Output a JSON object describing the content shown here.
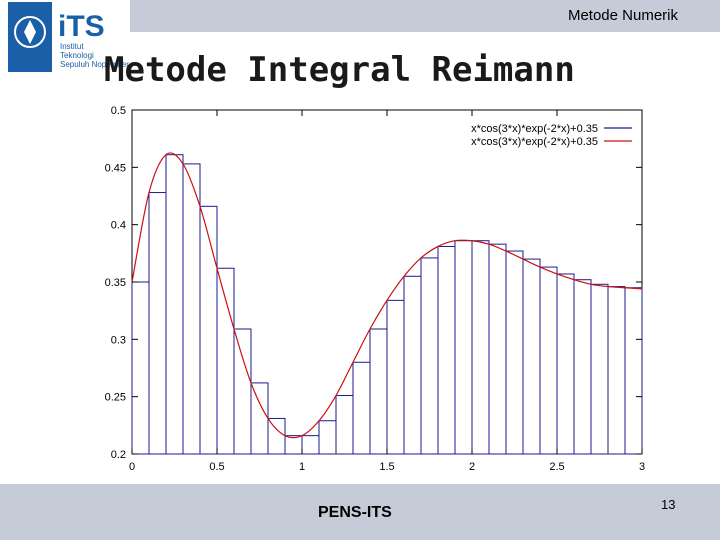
{
  "header": {
    "course_title": "Metode Numerik"
  },
  "logo": {
    "text": "iTS",
    "subtext": [
      "Institut",
      "Teknologi",
      "Sepuluh Nopember"
    ]
  },
  "slide": {
    "title": "Metode Integral Reimann"
  },
  "footer": {
    "left_text": "PENS-ITS",
    "page_number": "13"
  },
  "colors": {
    "bar_band": "#c5ccd7",
    "step_series": "#1a1a8c",
    "curve_series": "#cc1111",
    "logo_blue": "#1a5fa8"
  },
  "chart_data": {
    "type": "line",
    "title": "",
    "xlabel": "",
    "ylabel": "",
    "xlim": [
      0,
      3
    ],
    "ylim": [
      0.2,
      0.5
    ],
    "x_ticks": [
      0,
      0.5,
      1,
      1.5,
      2,
      2.5,
      3
    ],
    "x_tick_labels": [
      "0",
      "0.5",
      "1",
      "1.5",
      "2",
      "2.5",
      "3"
    ],
    "y_ticks": [
      0.2,
      0.25,
      0.3,
      0.35,
      0.4,
      0.45,
      0.5
    ],
    "y_tick_labels": [
      "0.2",
      "0.25",
      "0.3",
      "0.35",
      "0.4",
      "0.45",
      "0.5"
    ],
    "grid": false,
    "legend_position": "top-right",
    "series": [
      {
        "name": "x*cos(3*x)*exp(-2*x)+0.35",
        "style": "steps",
        "color": "#1a1a8c",
        "x": [
          0,
          0.1,
          0.2,
          0.3,
          0.4,
          0.5,
          0.6,
          0.7,
          0.8,
          0.9,
          1.0,
          1.1,
          1.2,
          1.3,
          1.4,
          1.5,
          1.6,
          1.7,
          1.8,
          1.9,
          2.0,
          2.1,
          2.2,
          2.3,
          2.4,
          2.5,
          2.6,
          2.7,
          2.8,
          2.9
        ],
        "values": [
          0.35,
          0.428,
          0.461,
          0.453,
          0.416,
          0.362,
          0.309,
          0.262,
          0.231,
          0.216,
          0.216,
          0.229,
          0.251,
          0.28,
          0.309,
          0.334,
          0.355,
          0.371,
          0.381,
          0.386,
          0.386,
          0.383,
          0.377,
          0.37,
          0.363,
          0.357,
          0.352,
          0.348,
          0.346,
          0.345
        ]
      },
      {
        "name": "x*cos(3*x)*exp(-2*x)+0.35",
        "style": "line",
        "color": "#cc1111",
        "x": [
          0,
          0.1,
          0.2,
          0.3,
          0.4,
          0.5,
          0.6,
          0.7,
          0.8,
          0.9,
          1.0,
          1.1,
          1.2,
          1.3,
          1.4,
          1.5,
          1.6,
          1.7,
          1.8,
          1.9,
          2.0,
          2.1,
          2.2,
          2.3,
          2.4,
          2.5,
          2.6,
          2.7,
          2.8,
          2.9,
          3.0
        ],
        "values": [
          0.35,
          0.428,
          0.461,
          0.453,
          0.416,
          0.362,
          0.309,
          0.262,
          0.231,
          0.216,
          0.216,
          0.229,
          0.251,
          0.28,
          0.309,
          0.334,
          0.355,
          0.371,
          0.381,
          0.386,
          0.386,
          0.383,
          0.377,
          0.37,
          0.363,
          0.357,
          0.352,
          0.348,
          0.346,
          0.345,
          0.344
        ]
      }
    ]
  }
}
